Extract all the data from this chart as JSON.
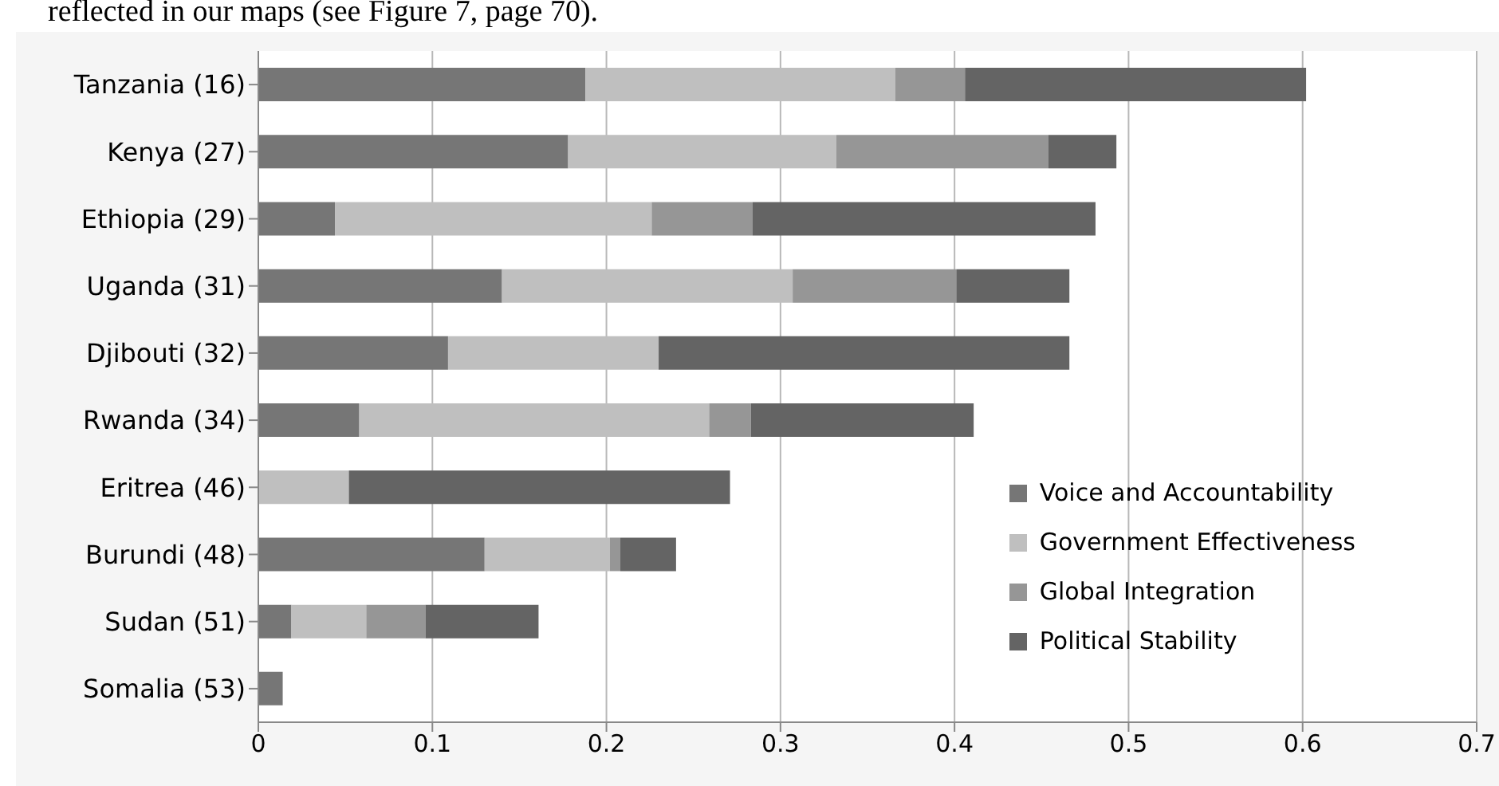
{
  "chart_data": {
    "type": "bar",
    "orientation": "horizontal",
    "stacked": true,
    "annotations": [
      "reflected in our maps (see Figure 7, page 70)."
    ],
    "categories": [
      "Tanzania (16)",
      "Kenya (27)",
      "Ethiopia (29)",
      "Uganda (31)",
      "Djibouti (32)",
      "Rwanda (34)",
      "Eritrea (46)",
      "Burundi (48)",
      "Sudan (51)",
      "Somalia (53)"
    ],
    "series": [
      {
        "name": "Voice and Accountability",
        "color": "#767676",
        "values": [
          0.188,
          0.178,
          0.044,
          0.14,
          0.109,
          0.058,
          0,
          0.13,
          0.019,
          0.014
        ]
      },
      {
        "name": "Government Effectiveness",
        "color": "#bfbfbf",
        "values": [
          0.178,
          0.154,
          0.182,
          0.167,
          0.121,
          0.201,
          0.052,
          0.072,
          0.043,
          0
        ]
      },
      {
        "name": "Global Integration",
        "color": "#969696",
        "values": [
          0.04,
          0.122,
          0.058,
          0.094,
          0,
          0.024,
          0,
          0.006,
          0.034,
          0
        ]
      },
      {
        "name": "Political Stability",
        "color": "#646464",
        "values": [
          0.196,
          0.039,
          0.197,
          0.065,
          0.236,
          0.128,
          0.219,
          0.032,
          0.065,
          0
        ]
      }
    ],
    "xlim": [
      0,
      0.7
    ],
    "xticks": [
      0,
      0.1,
      0.2,
      0.3,
      0.4,
      0.5,
      0.6,
      0.7
    ],
    "grid": "x",
    "legend": "bottom right"
  }
}
